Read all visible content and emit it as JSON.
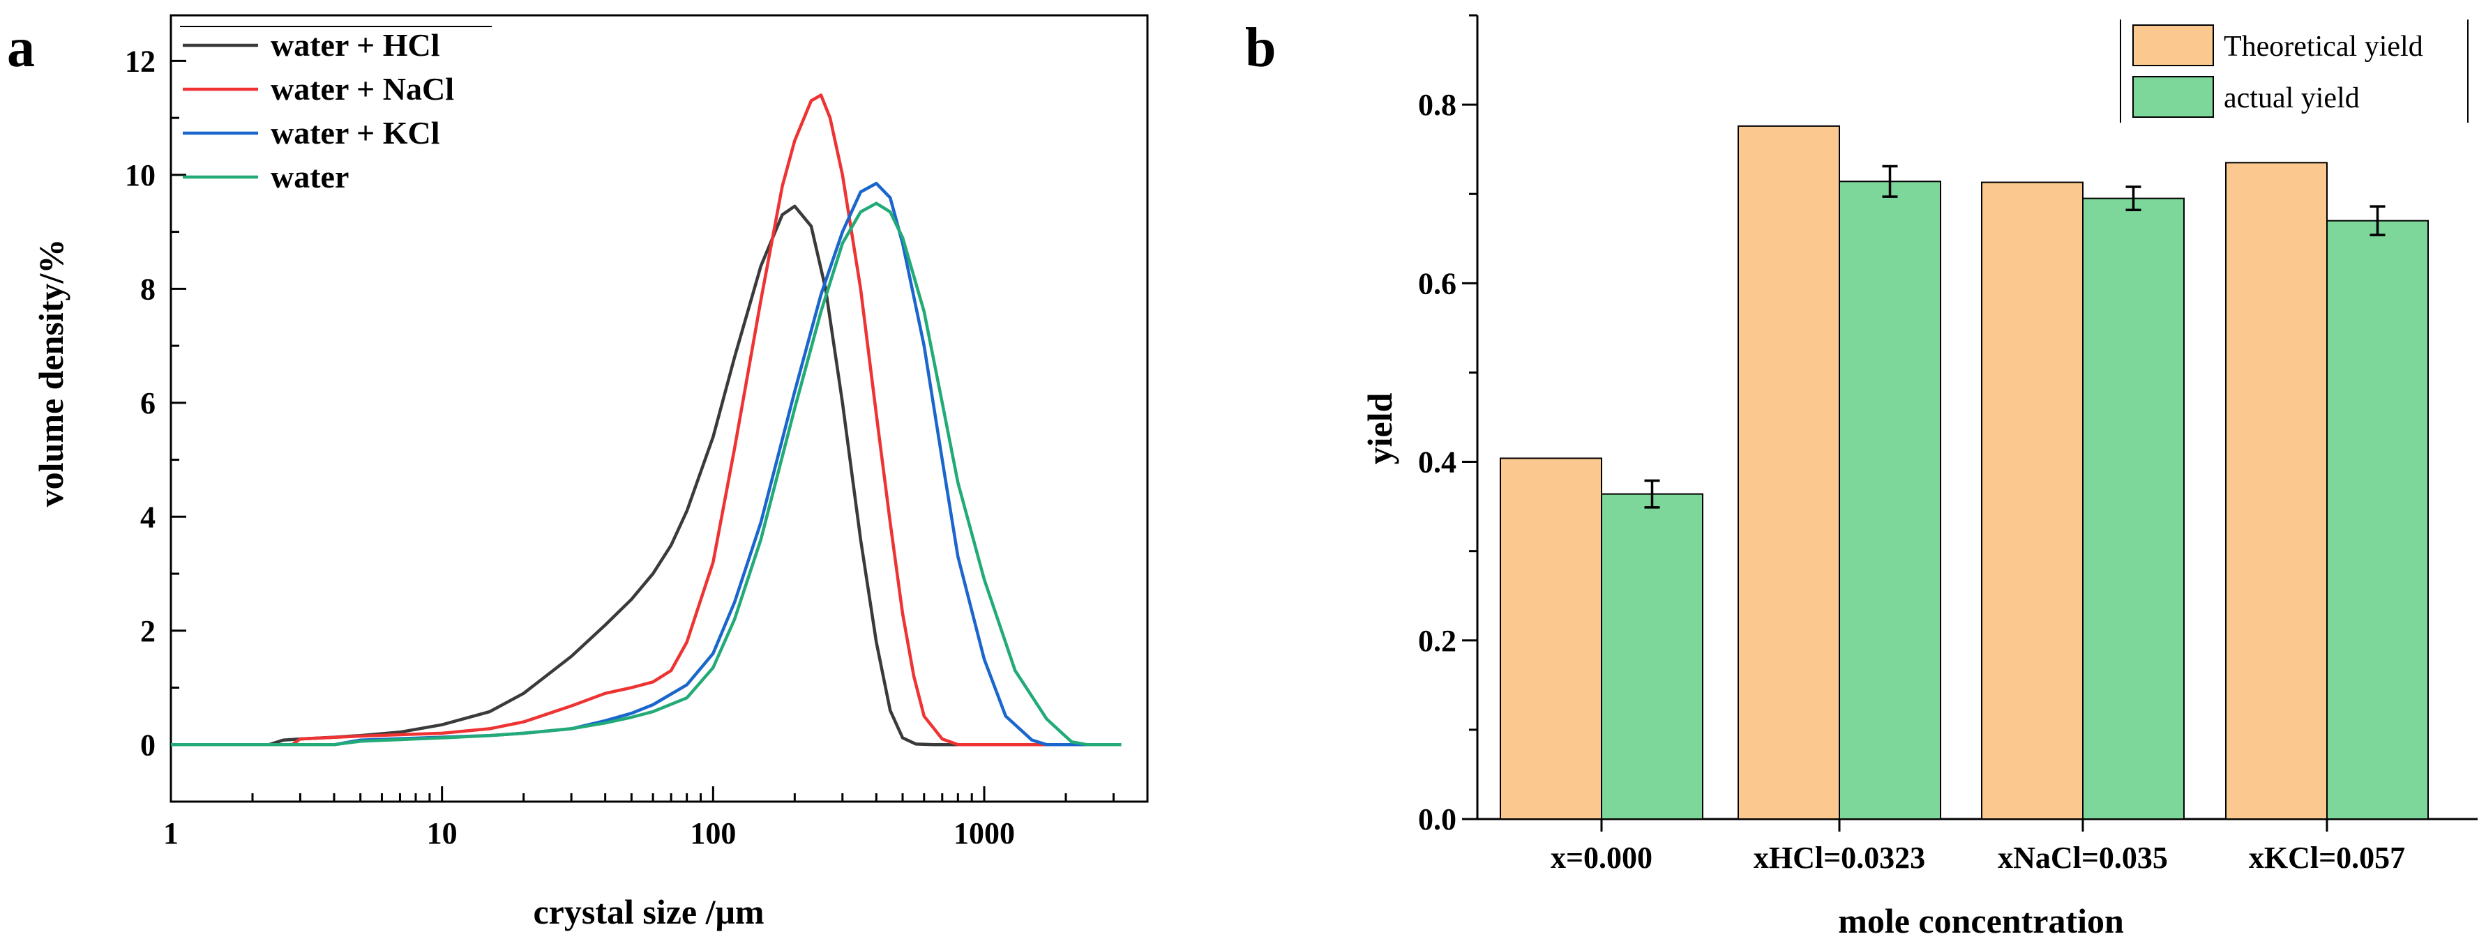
{
  "panel_labels": {
    "a": "a",
    "b": "b"
  },
  "chart_data": [
    {
      "id": "a",
      "type": "line",
      "xlabel": "crystal size /μm",
      "ylabel": "volume density/%",
      "xscale": "log",
      "xlim": [
        1,
        4000
      ],
      "ylim": [
        -1,
        12.8
      ],
      "xticks": [
        1,
        10,
        100,
        1000
      ],
      "xtick_labels": [
        "1",
        "10",
        "100",
        "1000"
      ],
      "yticks": [
        0,
        2,
        4,
        6,
        8,
        10,
        12
      ],
      "ytick_labels": [
        "0",
        "2",
        "4",
        "6",
        "8",
        "10",
        "12"
      ],
      "grid": false,
      "legend_position": "top-left",
      "series": [
        {
          "name": "water + HCl",
          "color": "#3a3a3a",
          "points": [
            [
              1,
              0
            ],
            [
              2.3,
              0
            ],
            [
              2.6,
              0.08
            ],
            [
              3,
              0.1
            ],
            [
              4,
              0.13
            ],
            [
              5,
              0.16
            ],
            [
              7,
              0.22
            ],
            [
              10,
              0.35
            ],
            [
              15,
              0.58
            ],
            [
              20,
              0.9
            ],
            [
              30,
              1.55
            ],
            [
              40,
              2.1
            ],
            [
              50,
              2.55
            ],
            [
              60,
              3.0
            ],
            [
              70,
              3.5
            ],
            [
              80,
              4.1
            ],
            [
              100,
              5.4
            ],
            [
              120,
              6.8
            ],
            [
              150,
              8.4
            ],
            [
              180,
              9.3
            ],
            [
              200,
              9.45
            ],
            [
              230,
              9.1
            ],
            [
              260,
              8.0
            ],
            [
              300,
              6.0
            ],
            [
              350,
              3.6
            ],
            [
              400,
              1.8
            ],
            [
              450,
              0.6
            ],
            [
              500,
              0.12
            ],
            [
              560,
              0.01
            ],
            [
              650,
              0
            ],
            [
              3200,
              0
            ]
          ]
        },
        {
          "name": "water + NaCl",
          "color": "#ee3333",
          "points": [
            [
              1,
              0
            ],
            [
              2.8,
              0
            ],
            [
              3,
              0.1
            ],
            [
              5,
              0.15
            ],
            [
              10,
              0.2
            ],
            [
              15,
              0.28
            ],
            [
              20,
              0.4
            ],
            [
              30,
              0.68
            ],
            [
              40,
              0.9
            ],
            [
              50,
              1.0
            ],
            [
              60,
              1.1
            ],
            [
              70,
              1.3
            ],
            [
              80,
              1.8
            ],
            [
              100,
              3.2
            ],
            [
              120,
              5.2
            ],
            [
              150,
              7.8
            ],
            [
              180,
              9.8
            ],
            [
              200,
              10.6
            ],
            [
              230,
              11.3
            ],
            [
              250,
              11.4
            ],
            [
              270,
              11.0
            ],
            [
              300,
              10.0
            ],
            [
              350,
              8.0
            ],
            [
              400,
              5.8
            ],
            [
              450,
              3.9
            ],
            [
              500,
              2.3
            ],
            [
              550,
              1.2
            ],
            [
              600,
              0.5
            ],
            [
              700,
              0.1
            ],
            [
              800,
              0
            ],
            [
              3200,
              0
            ]
          ]
        },
        {
          "name": "water + KCl",
          "color": "#1a66cc",
          "points": [
            [
              1,
              0
            ],
            [
              4,
              0
            ],
            [
              5,
              0.08
            ],
            [
              10,
              0.13
            ],
            [
              15,
              0.16
            ],
            [
              20,
              0.2
            ],
            [
              30,
              0.28
            ],
            [
              40,
              0.42
            ],
            [
              50,
              0.55
            ],
            [
              60,
              0.7
            ],
            [
              80,
              1.05
            ],
            [
              100,
              1.6
            ],
            [
              120,
              2.5
            ],
            [
              150,
              3.9
            ],
            [
              200,
              6.2
            ],
            [
              250,
              7.9
            ],
            [
              300,
              9.0
            ],
            [
              350,
              9.7
            ],
            [
              400,
              9.85
            ],
            [
              450,
              9.6
            ],
            [
              500,
              8.8
            ],
            [
              600,
              7.0
            ],
            [
              700,
              5.0
            ],
            [
              800,
              3.3
            ],
            [
              1000,
              1.5
            ],
            [
              1200,
              0.5
            ],
            [
              1500,
              0.08
            ],
            [
              1700,
              0
            ],
            [
              3200,
              0
            ]
          ]
        },
        {
          "name": "water",
          "color": "#22aa77",
          "points": [
            [
              1,
              0
            ],
            [
              4,
              0
            ],
            [
              5,
              0.06
            ],
            [
              10,
              0.12
            ],
            [
              15,
              0.16
            ],
            [
              20,
              0.2
            ],
            [
              30,
              0.28
            ],
            [
              40,
              0.38
            ],
            [
              50,
              0.48
            ],
            [
              60,
              0.58
            ],
            [
              80,
              0.82
            ],
            [
              100,
              1.35
            ],
            [
              120,
              2.2
            ],
            [
              150,
              3.6
            ],
            [
              200,
              5.9
            ],
            [
              250,
              7.6
            ],
            [
              300,
              8.8
            ],
            [
              350,
              9.35
            ],
            [
              400,
              9.5
            ],
            [
              450,
              9.35
            ],
            [
              500,
              8.9
            ],
            [
              600,
              7.6
            ],
            [
              700,
              6.0
            ],
            [
              800,
              4.6
            ],
            [
              1000,
              2.9
            ],
            [
              1300,
              1.3
            ],
            [
              1700,
              0.45
            ],
            [
              2100,
              0.05
            ],
            [
              2400,
              0
            ],
            [
              3200,
              0
            ]
          ]
        }
      ]
    },
    {
      "id": "b",
      "type": "bar",
      "xlabel": "mole concentration",
      "ylabel": "yield",
      "ylim": [
        0,
        0.9
      ],
      "yticks": [
        0,
        0.2,
        0.4,
        0.6,
        0.8
      ],
      "ytick_labels": [
        "0.0",
        "0.2",
        "0.4",
        "0.6",
        "0.8"
      ],
      "categories": [
        "x=0.000",
        "xHCl=0.0323",
        "xNaCl=0.035",
        "xKCl=0.057"
      ],
      "grid": false,
      "legend_position": "top-right",
      "series": [
        {
          "name": "Theoretical yield",
          "color": "#fbc98f",
          "values": [
            0.404,
            0.776,
            0.713,
            0.735
          ]
        },
        {
          "name": "actual yield",
          "color": "#7dd69a",
          "values": [
            0.364,
            0.714,
            0.695,
            0.67
          ],
          "errors": [
            0.015,
            0.017,
            0.013,
            0.016
          ]
        }
      ]
    }
  ]
}
